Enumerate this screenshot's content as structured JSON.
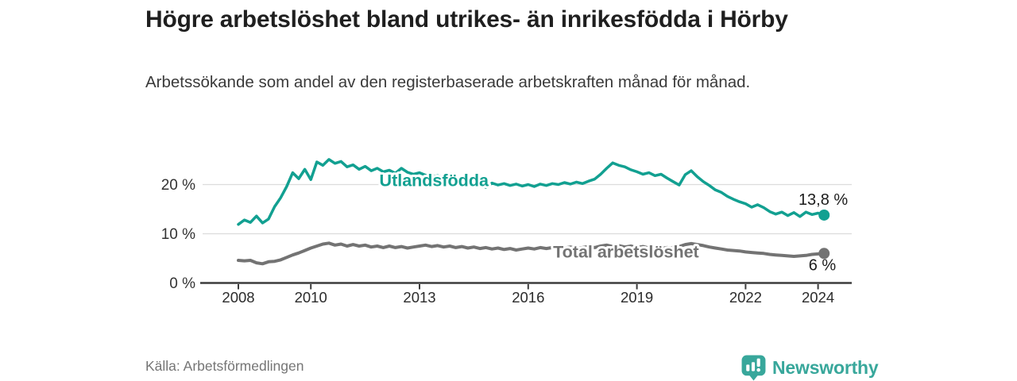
{
  "title": "Högre arbetslöshet bland utrikes- än inrikesfödda i Hörby",
  "subtitle": "Arbetssökande som andel av den registerbaserade arbetskraften månad för månad.",
  "source_note": "Källa: Arbetsförmedlingen",
  "branding": {
    "wordmark": "Newsworthy",
    "icon": "newsworthy-speech-bubble-bar-chart-icon",
    "brand_color": "#38a79b"
  },
  "colors": {
    "accent_teal": "#12a091",
    "line_gray": "#737373",
    "grid": "#dcdcdc",
    "axis": "#3c3c3c",
    "title_text": "#1f1f1f",
    "value_label_text": "#1c1c1c"
  },
  "chart_data": {
    "type": "line",
    "title": "Högre arbetslöshet bland utrikes- än inrikesfödda i Hörby",
    "xlabel": "",
    "ylabel": "",
    "x_unit": "year (monthly data)",
    "x_start": 2008.0,
    "x_step_years": 0.16667,
    "xlim": [
      2007.0,
      2024.95
    ],
    "ylim": [
      0,
      26
    ],
    "grid": "horizontal",
    "legend_position": "inline-labels",
    "x_tick_values": [
      2008,
      2010,
      2013,
      2016,
      2019,
      2022,
      2024
    ],
    "x_tick_labels": [
      "2008",
      "2010",
      "2013",
      "2016",
      "2019",
      "2022",
      "2024"
    ],
    "y_tick_values": [
      0,
      10,
      20
    ],
    "y_tick_labels": [
      "0 %",
      "10 %",
      "20 %"
    ],
    "series": [
      {
        "name": "Utlandsfödda",
        "color": "#12a091",
        "end_label": "13,8 %",
        "end_value": 13.8,
        "label_anchor": {
          "x": 2013.4,
          "y": 20.8
        },
        "values": [
          11.9,
          12.8,
          12.3,
          13.6,
          12.2,
          13.0,
          15.5,
          17.3,
          19.6,
          22.4,
          21.2,
          23.1,
          21.0,
          24.6,
          23.9,
          25.1,
          24.3,
          24.7,
          23.6,
          24.0,
          23.1,
          23.7,
          22.8,
          23.3,
          22.6,
          22.9,
          22.3,
          23.3,
          22.5,
          22.1,
          22.4,
          21.9,
          21.6,
          21.8,
          21.3,
          21.5,
          20.9,
          21.1,
          20.5,
          20.8,
          20.3,
          19.4,
          20.3,
          19.9,
          20.2,
          19.8,
          20.1,
          19.7,
          20.0,
          19.6,
          20.1,
          19.8,
          20.2,
          20.0,
          20.4,
          20.1,
          20.5,
          20.2,
          20.7,
          21.1,
          22.1,
          23.3,
          24.4,
          23.9,
          23.6,
          23.0,
          22.6,
          22.1,
          22.4,
          21.8,
          22.1,
          21.3,
          20.6,
          19.9,
          22.0,
          22.8,
          21.6,
          20.6,
          19.8,
          18.9,
          18.4,
          17.6,
          17.0,
          16.5,
          16.1,
          15.4,
          15.9,
          15.3,
          14.5,
          14.0,
          14.4,
          13.7,
          14.3,
          13.5,
          14.4,
          13.9,
          14.2,
          13.8
        ]
      },
      {
        "name": "Total arbetslöshet",
        "color": "#737373",
        "end_label": "6 %",
        "end_value": 6.0,
        "label_anchor": {
          "x": 2018.7,
          "y": 6.3
        },
        "values": [
          4.6,
          4.5,
          4.6,
          4.1,
          3.9,
          4.3,
          4.4,
          4.7,
          5.2,
          5.7,
          6.1,
          6.6,
          7.1,
          7.5,
          7.9,
          8.1,
          7.7,
          7.9,
          7.5,
          7.8,
          7.5,
          7.7,
          7.3,
          7.5,
          7.2,
          7.5,
          7.2,
          7.4,
          7.1,
          7.3,
          7.5,
          7.7,
          7.4,
          7.6,
          7.3,
          7.5,
          7.2,
          7.4,
          7.1,
          7.3,
          7.0,
          7.2,
          6.9,
          7.1,
          6.8,
          7.0,
          6.7,
          6.9,
          7.1,
          6.9,
          7.2,
          7.0,
          7.2,
          6.9,
          7.1,
          7.3,
          7.0,
          7.2,
          7.4,
          7.2,
          7.5,
          7.7,
          7.4,
          7.6,
          7.3,
          7.5,
          7.2,
          7.4,
          7.1,
          7.3,
          7.0,
          7.2,
          7.1,
          7.4,
          7.8,
          8.0,
          7.8,
          7.6,
          7.3,
          7.1,
          6.9,
          6.7,
          6.6,
          6.5,
          6.3,
          6.2,
          6.1,
          6.0,
          5.8,
          5.7,
          5.6,
          5.5,
          5.4,
          5.5,
          5.6,
          5.8,
          5.9,
          6.0
        ]
      }
    ]
  }
}
